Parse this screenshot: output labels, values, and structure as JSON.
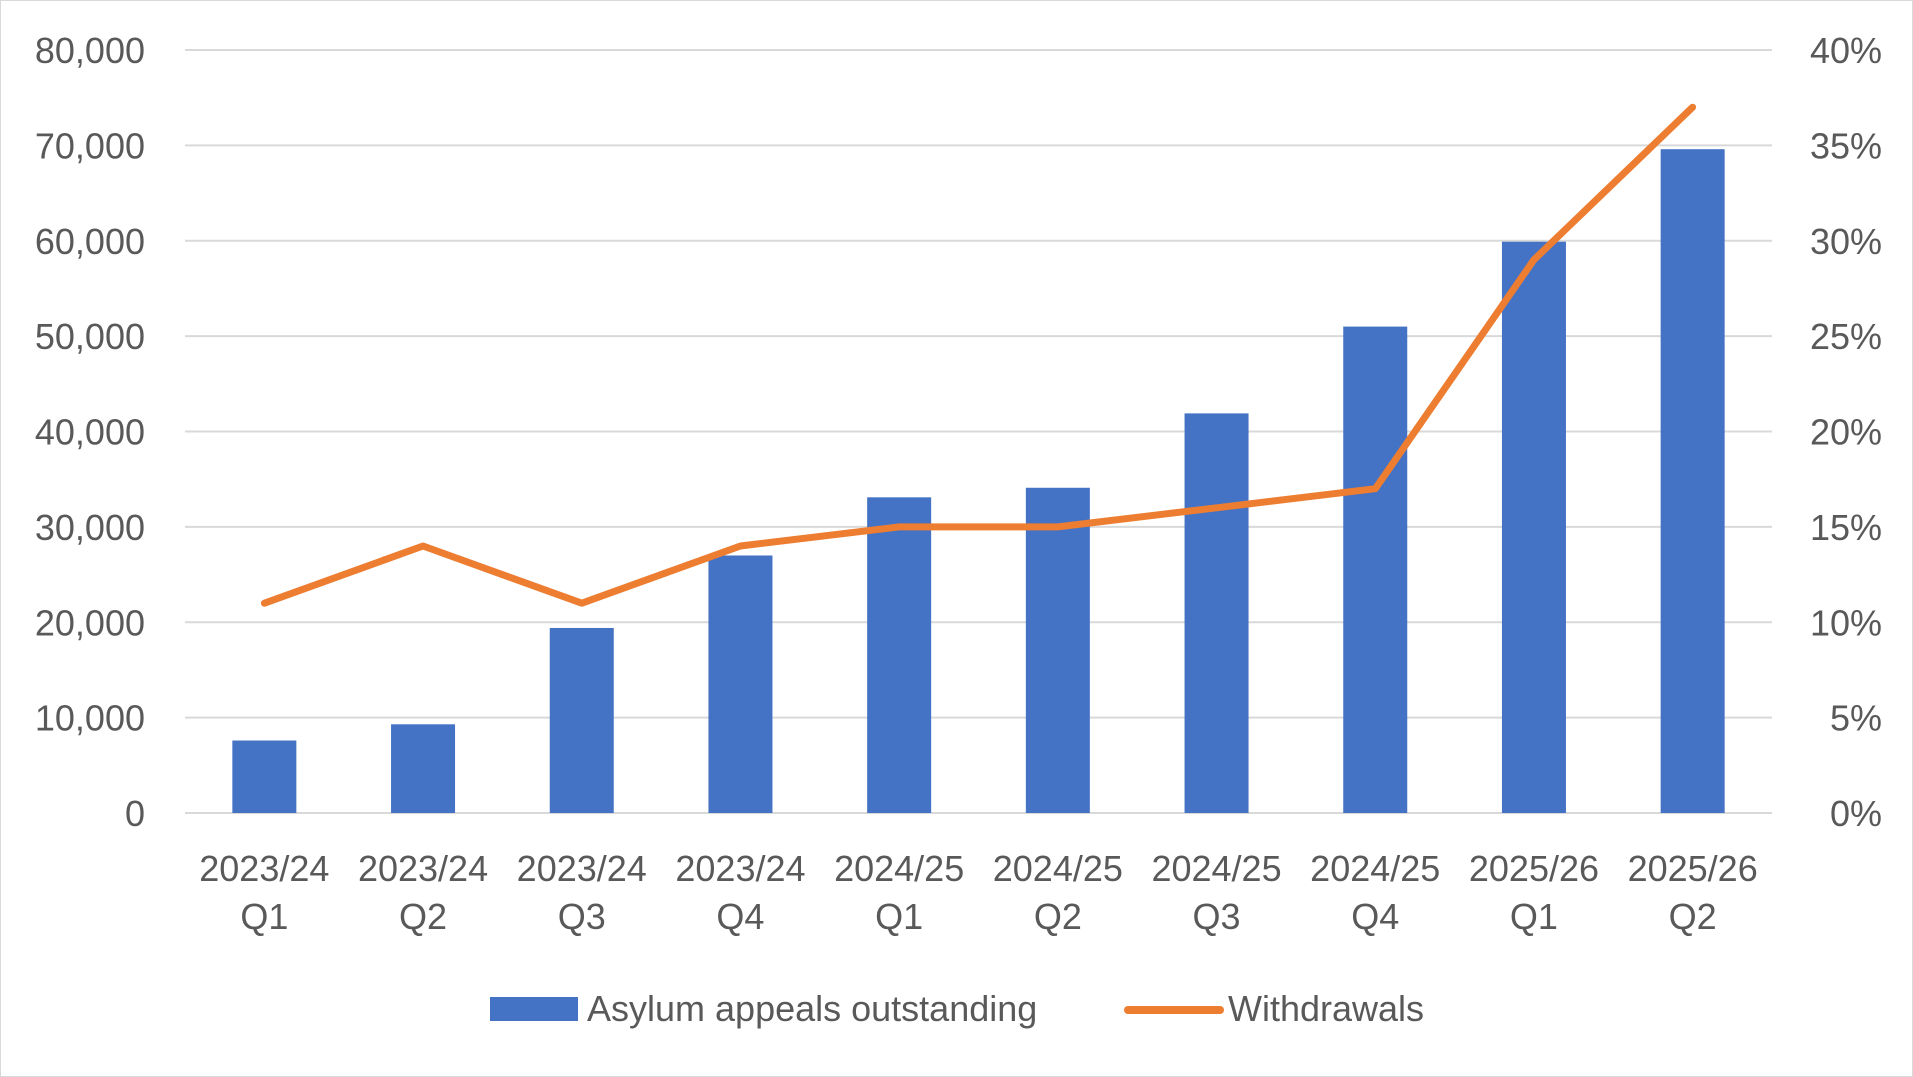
{
  "chart_data": {
    "type": "bar",
    "combo": "bar+line",
    "title": "",
    "categories": [
      [
        "2023/24",
        "Q1"
      ],
      [
        "2023/24",
        "Q2"
      ],
      [
        "2023/24",
        "Q3"
      ],
      [
        "2023/24",
        "Q4"
      ],
      [
        "2024/25",
        "Q1"
      ],
      [
        "2024/25",
        "Q2"
      ],
      [
        "2024/25",
        "Q3"
      ],
      [
        "2024/25",
        "Q4"
      ],
      [
        "2025/26",
        "Q1"
      ],
      [
        "2025/26",
        "Q2"
      ]
    ],
    "series": [
      {
        "name": "Asylum appeals outstanding",
        "type": "bar",
        "axis": "left",
        "color": "#4472c4",
        "values": [
          7600,
          9300,
          19400,
          27000,
          33100,
          34100,
          41900,
          51000,
          59900,
          69600
        ]
      },
      {
        "name": "Withdrawals",
        "type": "line",
        "axis": "right",
        "color": "#ed7d31",
        "values": [
          0.11,
          0.14,
          0.11,
          0.14,
          0.15,
          0.15,
          0.16,
          0.17,
          0.29,
          0.37
        ]
      }
    ],
    "y_left": {
      "min": 0,
      "max": 80000,
      "step": 10000,
      "tick_labels": [
        "0",
        "10,000",
        "20,000",
        "30,000",
        "40,000",
        "50,000",
        "60,000",
        "70,000",
        "80,000"
      ]
    },
    "y_right": {
      "min": 0,
      "max": 0.4,
      "step": 0.05,
      "tick_labels": [
        "0%",
        "5%",
        "10%",
        "15%",
        "20%",
        "25%",
        "30%",
        "35%",
        "40%"
      ]
    },
    "grid": true,
    "gridline_color": "#d9d9d9",
    "legend_position": "bottom"
  }
}
